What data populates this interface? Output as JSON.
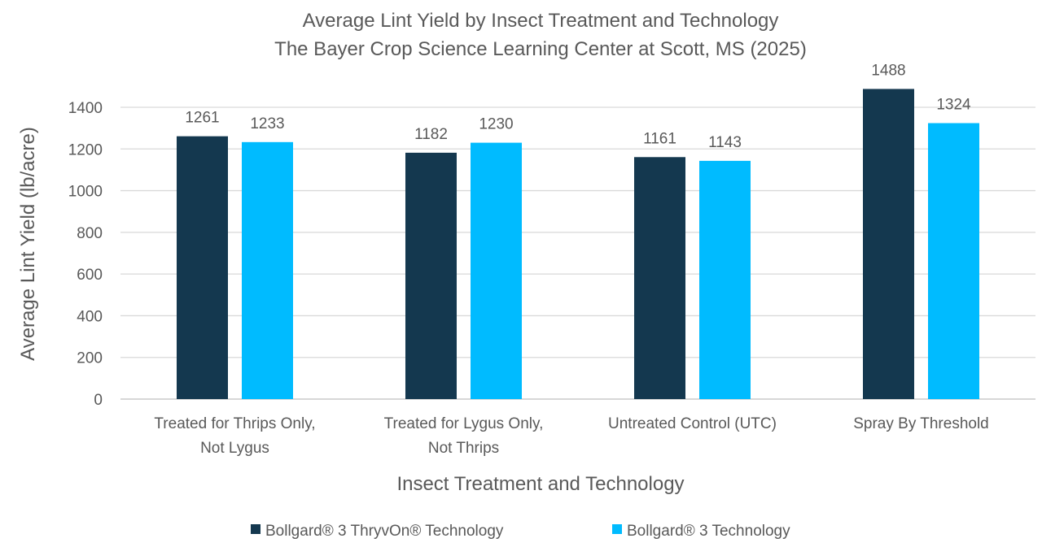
{
  "chart_data": {
    "type": "bar",
    "title": "Average Lint Yield by Insect Treatment and Technology",
    "subtitle": "The Bayer Crop Science Learning Center at Scott, MS (2025)",
    "xlabel": "Insect Treatment and Technology",
    "ylabel": "Average Lint Yield (lb/acre)",
    "ylim": [
      0,
      1500
    ],
    "yticks": [
      0,
      200,
      400,
      600,
      800,
      1000,
      1200,
      1400
    ],
    "grid": true,
    "legend_position": "bottom",
    "categories": [
      [
        "Treated for Thrips Only,",
        "Not Lygus"
      ],
      [
        "Treated for Lygus Only,",
        "Not Thrips"
      ],
      [
        "Untreated Control (UTC)"
      ],
      [
        "Spray By Threshold"
      ]
    ],
    "series": [
      {
        "name": "Bollgard® 3 ThryvOn® Technology",
        "color": "#14384f",
        "values": [
          1261,
          1182,
          1161,
          1488
        ]
      },
      {
        "name": "Bollgard® 3 Technology",
        "color": "#00bbff",
        "values": [
          1233,
          1230,
          1143,
          1324
        ]
      }
    ]
  }
}
